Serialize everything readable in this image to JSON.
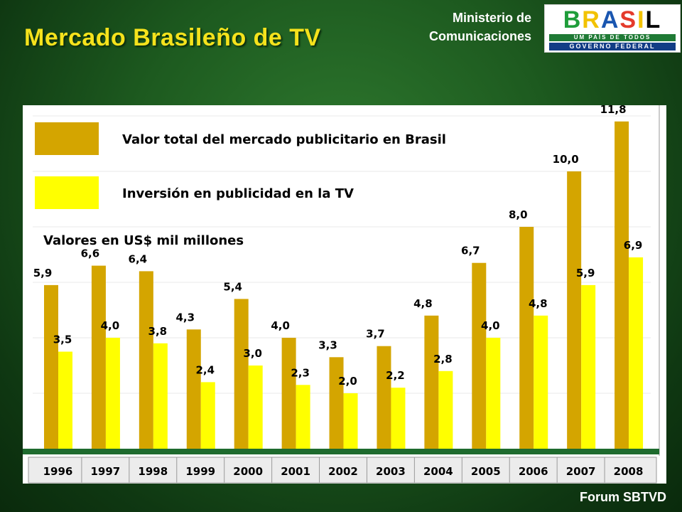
{
  "header": {
    "title": "Mercado Brasileño de TV",
    "ministry_line1": "Ministerio de",
    "ministry_line2": "Comunicaciones"
  },
  "logo": {
    "word": "BRASIL",
    "tagline": "UM PAÍS DE TODOS",
    "subline": "GOVERNO FEDERAL"
  },
  "footer": {
    "label": "Forum SBTVD"
  },
  "chart_data": {
    "type": "bar",
    "title": "",
    "subtitle": "Valores en US$ mil millones",
    "categories": [
      "1996",
      "1997",
      "1998",
      "1999",
      "2000",
      "2001",
      "2002",
      "2003",
      "2004",
      "2005",
      "2006",
      "2007",
      "2008"
    ],
    "series": [
      {
        "name": "Valor total del mercado publicitario en Brasil",
        "color": "#d4a500",
        "values": [
          5.9,
          6.6,
          6.4,
          4.3,
          5.4,
          4.0,
          3.3,
          3.7,
          4.8,
          6.7,
          8.0,
          10.0,
          11.8
        ],
        "labels": [
          "5,9",
          "6,6",
          "6,4",
          "4,3",
          "5,4",
          "4,0",
          "3,3",
          "3,7",
          "4,8",
          "6,7",
          "8,0",
          "10,0",
          "11,8"
        ]
      },
      {
        "name": "Inversión en publicidad en la TV",
        "color": "#ffff00",
        "values": [
          3.5,
          4.0,
          3.8,
          2.4,
          3.0,
          2.3,
          2.0,
          2.2,
          2.8,
          4.0,
          4.8,
          5.9,
          6.9
        ],
        "labels": [
          "3,5",
          "4,0",
          "3,8",
          "2,4",
          "3,0",
          "2,3",
          "2,0",
          "2,2",
          "2,8",
          "4,0",
          "4,8",
          "5,9",
          "6,9"
        ]
      }
    ],
    "ylim": [
      0,
      12
    ],
    "grid": true,
    "legend_position": "top-left"
  }
}
